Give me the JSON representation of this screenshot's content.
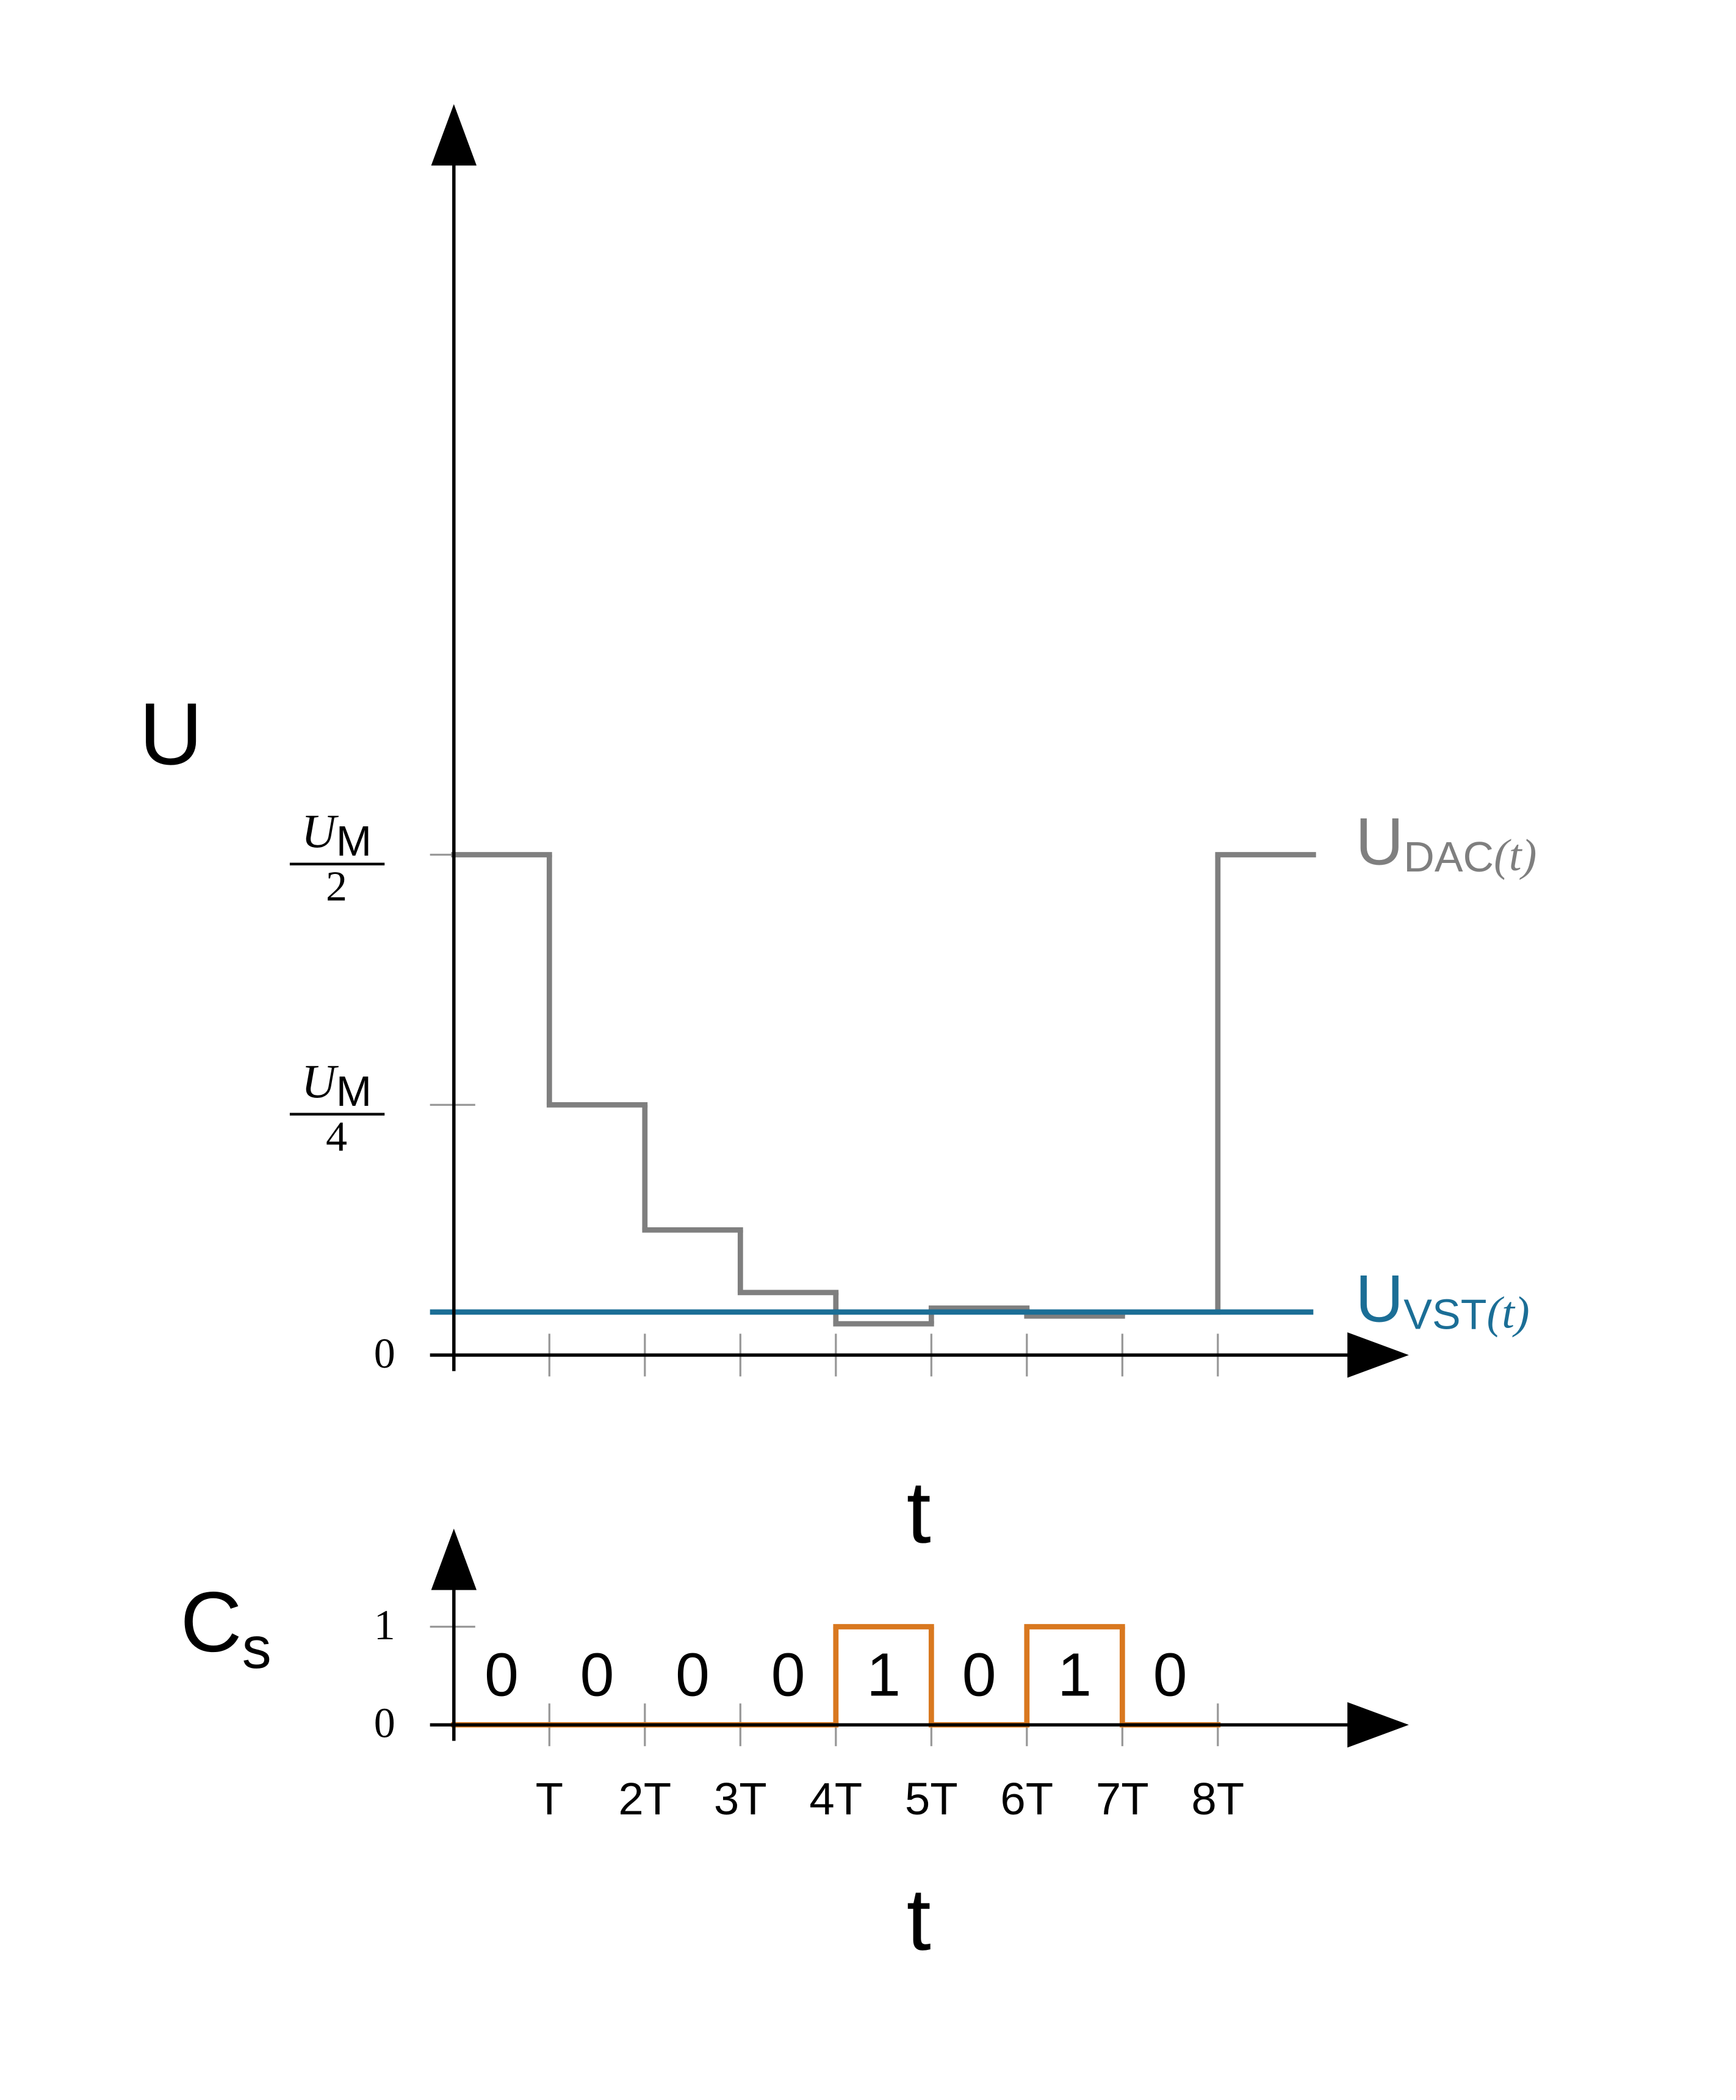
{
  "chart_data": [
    {
      "type": "line",
      "ylabel": "U",
      "xlabel": "t",
      "xlim": [
        -0.25,
        10
      ],
      "ylim": [
        0,
        1.25
      ],
      "xticks": [
        1,
        2,
        3,
        4,
        5,
        6,
        7,
        8
      ],
      "xtick_labels": false,
      "yticks": [
        0,
        {
          "value": 0.25,
          "label": {
            "num": "U",
            "sub": "M",
            "den": "4"
          }
        },
        {
          "value": 0.5,
          "label": {
            "num": "U",
            "sub": "M",
            "den": "2"
          }
        }
      ],
      "series": [
        {
          "name": "U",
          "name_sub": "DAC",
          "name_arg": "(t)",
          "color": "#7f7f7f",
          "drawstyle": "steps-post",
          "x": [
            0,
            1,
            2,
            3,
            4,
            5,
            6,
            7,
            8
          ],
          "values": [
            0.5,
            0.25,
            0.125,
            0.0625,
            0.03125,
            0.046875,
            0.039,
            0.043,
            0.5
          ]
        },
        {
          "name": "U",
          "name_sub": "VST",
          "name_arg": "(t)",
          "color": "#1b6e96",
          "drawstyle": "default",
          "x": [
            -0.25,
            9
          ],
          "values": [
            0.043,
            0.043
          ]
        }
      ]
    },
    {
      "type": "line",
      "ylabel": "C",
      "ylabel_sub": "s",
      "xlabel": "t",
      "xlim": [
        -0.25,
        10
      ],
      "ylim": [
        0,
        2
      ],
      "xticks": [
        {
          "value": 1,
          "label": "T"
        },
        {
          "value": 2,
          "label": "2T"
        },
        {
          "value": 3,
          "label": "3T"
        },
        {
          "value": 4,
          "label": "4T"
        },
        {
          "value": 5,
          "label": "5T"
        },
        {
          "value": 6,
          "label": "6T"
        },
        {
          "value": 7,
          "label": "7T"
        },
        {
          "value": 8,
          "label": "8T"
        }
      ],
      "xtick_labels": true,
      "yticks": [
        0,
        1
      ],
      "series": [
        {
          "color": "#d9781f",
          "drawstyle": "steps-post",
          "show_values": true,
          "x": [
            0,
            1,
            2,
            3,
            4,
            5,
            6,
            7
          ],
          "values": [
            0,
            0,
            0,
            0,
            1,
            0,
            1,
            0
          ]
        }
      ]
    }
  ]
}
